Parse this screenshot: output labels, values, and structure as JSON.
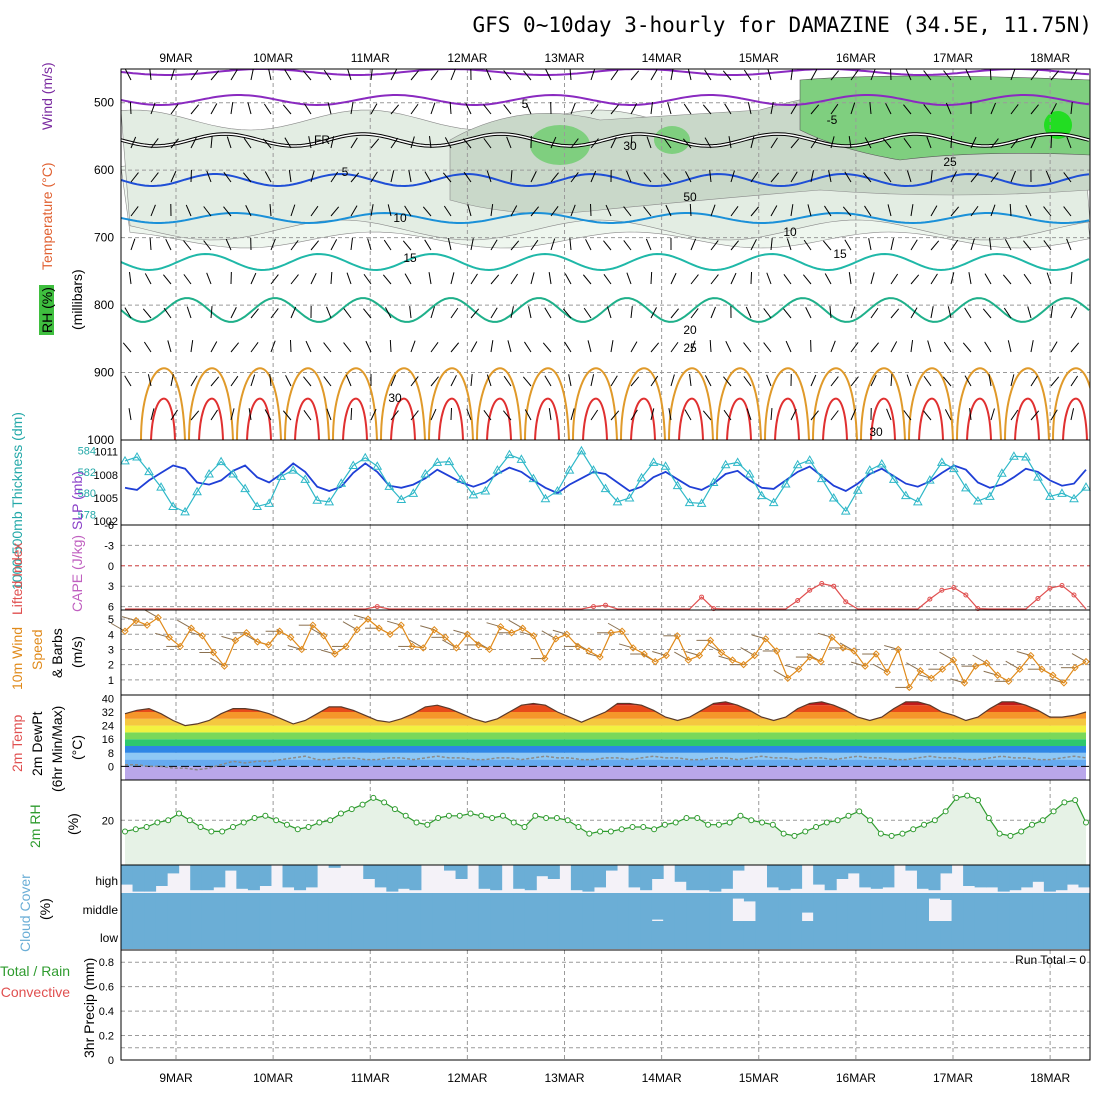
{
  "title": "GFS 0~10day 3-hourly for DAMAZINE (34.5E, 11.75N)",
  "chart_data": [
    {
      "type": "line",
      "panel": "upper-air cross-section",
      "dates": [
        "9MAR",
        "10MAR",
        "11MAR",
        "12MAR",
        "13MAR",
        "14MAR",
        "15MAR",
        "16MAR",
        "17MAR",
        "18MAR"
      ],
      "ylabel": {
        "part1": "RH (%)",
        "part2": "Temperature (°C)",
        "part3": "Wind (m/s)",
        "part4": "(millibars)"
      },
      "pressure_ticks": [
        "500",
        "600",
        "700",
        "800",
        "900",
        "1000"
      ],
      "pressure_range": [
        450,
        1000
      ],
      "freezing_label": "FR",
      "contour_labels": [
        "5",
        "FR",
        "5",
        "10",
        "15",
        "20",
        "25",
        "30",
        "-5",
        "30",
        "50",
        "10",
        "15",
        "30",
        "25"
      ],
      "rh_note": "30 / 50 % shading"
    },
    {
      "type": "line",
      "panel": "thickness-slp",
      "ylabel": {
        "thickness": "1000-500mb Thickness (dm)",
        "slp": "SLP (mb)"
      },
      "thickness_ticks": [
        "584",
        "582",
        "580",
        "578"
      ],
      "slp_ticks": [
        "1011",
        "1008",
        "1005",
        "1002"
      ],
      "thickness": [
        580.5,
        580.3,
        581.2,
        581.9,
        582.6,
        582.3,
        581.0,
        580.8,
        581.2,
        582.1,
        582.6,
        581.5,
        581.0,
        581.8,
        582.8,
        582.0,
        580.6,
        580.2,
        580.6,
        581.9,
        582.8,
        582.0,
        580.7,
        580.5,
        580.8,
        581.4,
        582.2,
        581.6,
        581.0,
        580.6,
        581.0,
        581.8,
        582.4,
        582.0,
        581.2,
        580.5,
        580.0,
        580.8,
        581.4,
        582.0,
        581.8,
        581.0,
        580.2,
        580.6,
        581.5,
        582.0,
        581.3,
        580.6,
        580.3,
        580.9,
        581.8,
        582.1,
        581.2,
        580.5,
        580.4,
        581.2,
        582.0,
        582.5,
        581.6,
        580.7,
        580.2,
        580.9,
        581.8,
        582.3,
        581.6,
        580.9,
        580.6,
        581.1,
        581.9,
        582.6,
        582.2,
        581.0,
        580.5,
        580.8,
        581.5,
        582.3,
        582.0,
        581.2,
        580.7,
        580.9,
        582.2
      ],
      "slp": [
        1009.8,
        1010.3,
        1008.4,
        1006.4,
        1003.9,
        1003.2,
        1005.8,
        1008.1,
        1009.7,
        1008.1,
        1006.2,
        1003.9,
        1004.3,
        1007.8,
        1008.6,
        1007.4,
        1004.7,
        1004.5,
        1006.9,
        1009.2,
        1010.2,
        1009.1,
        1006.5,
        1004.8,
        1005.6,
        1008.1,
        1009.6,
        1009.7,
        1007.4,
        1005.4,
        1005.9,
        1008.6,
        1010.6,
        1010.0,
        1007.5,
        1004.9,
        1005.9,
        1008.6,
        1011.1,
        1008.6,
        1006.2,
        1004.5,
        1005.0,
        1007.6,
        1009.6,
        1009.1,
        1006.6,
        1004.4,
        1004.3,
        1007.0,
        1009.3,
        1009.6,
        1008.1,
        1005.3,
        1004.4,
        1006.8,
        1009.3,
        1009.9,
        1007.5,
        1005.0,
        1003.3,
        1006.0,
        1008.6,
        1009.4,
        1007.4,
        1005.3,
        1004.5,
        1007.3,
        1009.6,
        1008.8,
        1006.3,
        1004.6,
        1005.2,
        1008.2,
        1010.4,
        1010.3,
        1007.7,
        1005.2,
        1005.6,
        1004.9,
        1006.4
      ]
    },
    {
      "type": "line",
      "panel": "cape-li",
      "ylabel": {
        "li": "Lifted Index",
        "cape": "CAPE (J/kg)"
      },
      "li_ticks": [
        "-6",
        "-3",
        "0",
        "3",
        "6"
      ],
      "lifted_index": [
        6.8,
        6.8,
        6.8,
        6.8,
        6.8,
        6.8,
        6.8,
        6.8,
        6.8,
        6.8,
        6.8,
        6.8,
        6.8,
        6.8,
        6.8,
        6.8,
        6.8,
        6.8,
        6.8,
        6.8,
        6.5,
        6.0,
        6.8,
        6.8,
        6.8,
        6.8,
        6.8,
        6.8,
        6.8,
        6.8,
        6.8,
        6.8,
        6.8,
        6.8,
        6.8,
        6.8,
        6.8,
        6.8,
        6.8,
        6.0,
        5.8,
        6.6,
        6.8,
        6.8,
        6.8,
        6.8,
        6.8,
        6.8,
        4.6,
        6.3,
        6.8,
        6.8,
        6.8,
        6.8,
        6.8,
        6.8,
        5.1,
        3.6,
        2.6,
        3.0,
        5.3,
        6.8,
        6.8,
        6.8,
        6.8,
        6.8,
        6.8,
        4.9,
        3.6,
        3.2,
        4.3,
        6.3,
        6.8,
        6.8,
        6.8,
        6.8,
        4.8,
        3.3,
        2.9,
        4.3,
        6.5
      ]
    },
    {
      "type": "line",
      "panel": "wind10",
      "ylabel": {
        "a": "10m Wind",
        "b": "Speed",
        "c": "& Barbs",
        "d": "(m/s)"
      },
      "speed_ticks": [
        "5",
        "4",
        "3",
        "2",
        "1"
      ],
      "speed": [
        4.2,
        4.9,
        4.6,
        5.1,
        3.8,
        3.2,
        4.4,
        3.9,
        2.8,
        1.9,
        3.6,
        4.1,
        3.5,
        3.3,
        4.2,
        3.8,
        3.0,
        4.6,
        3.9,
        2.7,
        3.2,
        4.3,
        5.0,
        4.4,
        4.0,
        4.6,
        3.2,
        3.1,
        4.3,
        3.8,
        3.1,
        4.0,
        3.3,
        3.0,
        4.5,
        4.1,
        4.4,
        3.9,
        2.4,
        3.7,
        4.0,
        3.2,
        2.9,
        2.5,
        4.1,
        4.2,
        3.1,
        2.7,
        2.2,
        2.6,
        3.9,
        2.3,
        2.6,
        3.6,
        2.8,
        2.3,
        2.0,
        2.6,
        3.7,
        2.9,
        1.1,
        1.7,
        2.5,
        2.2,
        3.8,
        3.1,
        2.9,
        1.9,
        2.7,
        1.5,
        3.0,
        0.5,
        1.6,
        1.1,
        1.7,
        2.3,
        0.8,
        1.9,
        2.1,
        1.3,
        0.9,
        1.7,
        2.6,
        1.7,
        1.3,
        0.8,
        1.8,
        2.2
      ]
    },
    {
      "type": "area",
      "panel": "temperature",
      "ylabel": {
        "a": "2m Temp",
        "b": "2m DewPt",
        "c": "(6hr Min/Max)",
        "d": "(°C)"
      },
      "temp_ticks": [
        "40",
        "32",
        "24",
        "16",
        "8",
        "0"
      ],
      "temp": [
        31,
        33,
        34,
        31,
        27,
        24,
        25,
        27,
        31,
        34,
        34,
        33,
        31,
        28,
        25,
        27,
        31,
        35,
        35,
        33,
        30,
        27,
        26,
        28,
        31,
        35,
        36,
        34,
        31,
        28,
        26,
        28,
        32,
        36,
        37,
        36,
        32,
        29,
        26,
        29,
        32,
        37,
        37,
        36,
        33,
        29,
        27,
        29,
        33,
        37,
        38,
        36,
        33,
        29,
        27,
        29,
        34,
        37,
        38,
        36,
        33,
        29,
        27,
        29,
        34,
        38,
        38,
        36,
        32,
        30,
        27,
        29,
        34,
        38,
        38,
        36,
        33,
        29,
        29,
        30,
        32
      ],
      "dewpoint": [
        1,
        1,
        0,
        0,
        -1,
        -1,
        -2,
        -1,
        1,
        3,
        2,
        3,
        3,
        4,
        5,
        6,
        4,
        4,
        5,
        5,
        4,
        4,
        5,
        5,
        4,
        5,
        6,
        5,
        5,
        4,
        4,
        5,
        5,
        4,
        5,
        6,
        5,
        5,
        4,
        4,
        5,
        5,
        4,
        5,
        6,
        5,
        5,
        4,
        4,
        5,
        5,
        4,
        5,
        6,
        5,
        5,
        4,
        5,
        5,
        4,
        5,
        6,
        5,
        5,
        4,
        4,
        5,
        6,
        5,
        5,
        4,
        4,
        5,
        6,
        5,
        5,
        4,
        4,
        5,
        6,
        5
      ]
    },
    {
      "type": "area",
      "panel": "rh2m",
      "ylabel": "2m RH",
      "units_label": "(%)",
      "rh_ticks": [
        "20"
      ],
      "rh": [
        15,
        16,
        17,
        19,
        20,
        23,
        20,
        17,
        15,
        15,
        17,
        19,
        21,
        22,
        20,
        18,
        16,
        17,
        19,
        20,
        23,
        25,
        27,
        30,
        28,
        25,
        22,
        19,
        18,
        21,
        22,
        22,
        23,
        22,
        21,
        22,
        19,
        17,
        22,
        21,
        21,
        20,
        17,
        14,
        15,
        15,
        16,
        17,
        17,
        16,
        18,
        19,
        21,
        21,
        18,
        18,
        19,
        22,
        20,
        19,
        18,
        14,
        13,
        15,
        17,
        19,
        20,
        22,
        24,
        20,
        14,
        13,
        14,
        16,
        18,
        20,
        24,
        30,
        31,
        29,
        21,
        14,
        13,
        15,
        18,
        20,
        24,
        28,
        29,
        19
      ]
    },
    {
      "type": "heatmap",
      "panel": "cloud-cover",
      "ylabel": "Cloud Cover",
      "units_label": "(%)",
      "layers": [
        "high",
        "middle",
        "low"
      ],
      "high": [
        70,
        95,
        95,
        75,
        30,
        0,
        90,
        90,
        80,
        20,
        85,
        90,
        75,
        0,
        80,
        90,
        80,
        0,
        10,
        0,
        0,
        50,
        80,
        95,
        85,
        90,
        0,
        0,
        20,
        50,
        0,
        85,
        90,
        0,
        85,
        90,
        40,
        50,
        0,
        90,
        95,
        80,
        20,
        0,
        80,
        90,
        50,
        0,
        60,
        90,
        90,
        95,
        85,
        20,
        0,
        0,
        80,
        90,
        85,
        0,
        70,
        90,
        50,
        30,
        80,
        85,
        80,
        0,
        20,
        85,
        90,
        30,
        0,
        75,
        80,
        80,
        95,
        90,
        80,
        60,
        95,
        90,
        70,
        80
      ],
      "middle": [
        0,
        0,
        0,
        0,
        0,
        0,
        0,
        0,
        0,
        0,
        0,
        0,
        0,
        0,
        0,
        0,
        0,
        0,
        0,
        0,
        0,
        0,
        0,
        0,
        0,
        0,
        0,
        0,
        0,
        0,
        0,
        0,
        0,
        0,
        0,
        0,
        0,
        0,
        0,
        0,
        0,
        0,
        0,
        0,
        0,
        0,
        5,
        0,
        0,
        0,
        0,
        0,
        0,
        80,
        70,
        0,
        0,
        0,
        0,
        30,
        0,
        0,
        0,
        0,
        0,
        0,
        0,
        0,
        0,
        0,
        80,
        75,
        0,
        0,
        0,
        0,
        0,
        0,
        0,
        0,
        0,
        0,
        0,
        0
      ],
      "low": [
        0,
        0,
        0,
        0,
        0,
        0,
        0,
        0,
        0,
        0,
        0,
        0,
        0,
        0,
        0,
        0,
        0,
        0,
        0,
        0,
        0,
        0,
        0,
        0,
        0,
        0,
        0,
        0,
        0,
        0,
        0,
        0,
        0,
        0,
        0,
        0,
        0,
        0,
        0,
        0,
        0,
        0,
        0,
        0,
        0,
        0,
        0,
        0,
        0,
        0,
        0,
        0,
        0,
        0,
        0,
        0,
        0,
        0,
        0,
        0,
        0,
        0,
        0,
        0,
        0,
        0,
        0,
        0,
        0,
        0,
        0,
        0,
        0,
        0,
        0,
        0,
        0,
        0,
        0,
        0,
        0,
        0,
        0,
        0
      ]
    },
    {
      "type": "bar",
      "panel": "precip",
      "ylabel": {
        "a": "3hr Precip (mm)",
        "b": "Total / Rain",
        "c": "Convective"
      },
      "precip_ticks": [
        "0.8",
        "0.6",
        "0.4",
        "0.2",
        "0"
      ],
      "ylim": [
        0,
        0.9
      ],
      "run_total_label": "Run Total = 0",
      "total": []
    }
  ],
  "colors": {
    "grid": "#9a9a9a",
    "frame": "#000000",
    "thickness": "#1f3fd6",
    "slp": "#2fb8c8",
    "lifted_index": "#e05050",
    "wind_speed": "#e08a1a",
    "dewpoint": "#8a8a8a",
    "rh": "#2e9b2e",
    "rh_fill": "#e6f2e6",
    "cloud": "#6baed6",
    "cloud_bg": "#f4f2f8"
  }
}
